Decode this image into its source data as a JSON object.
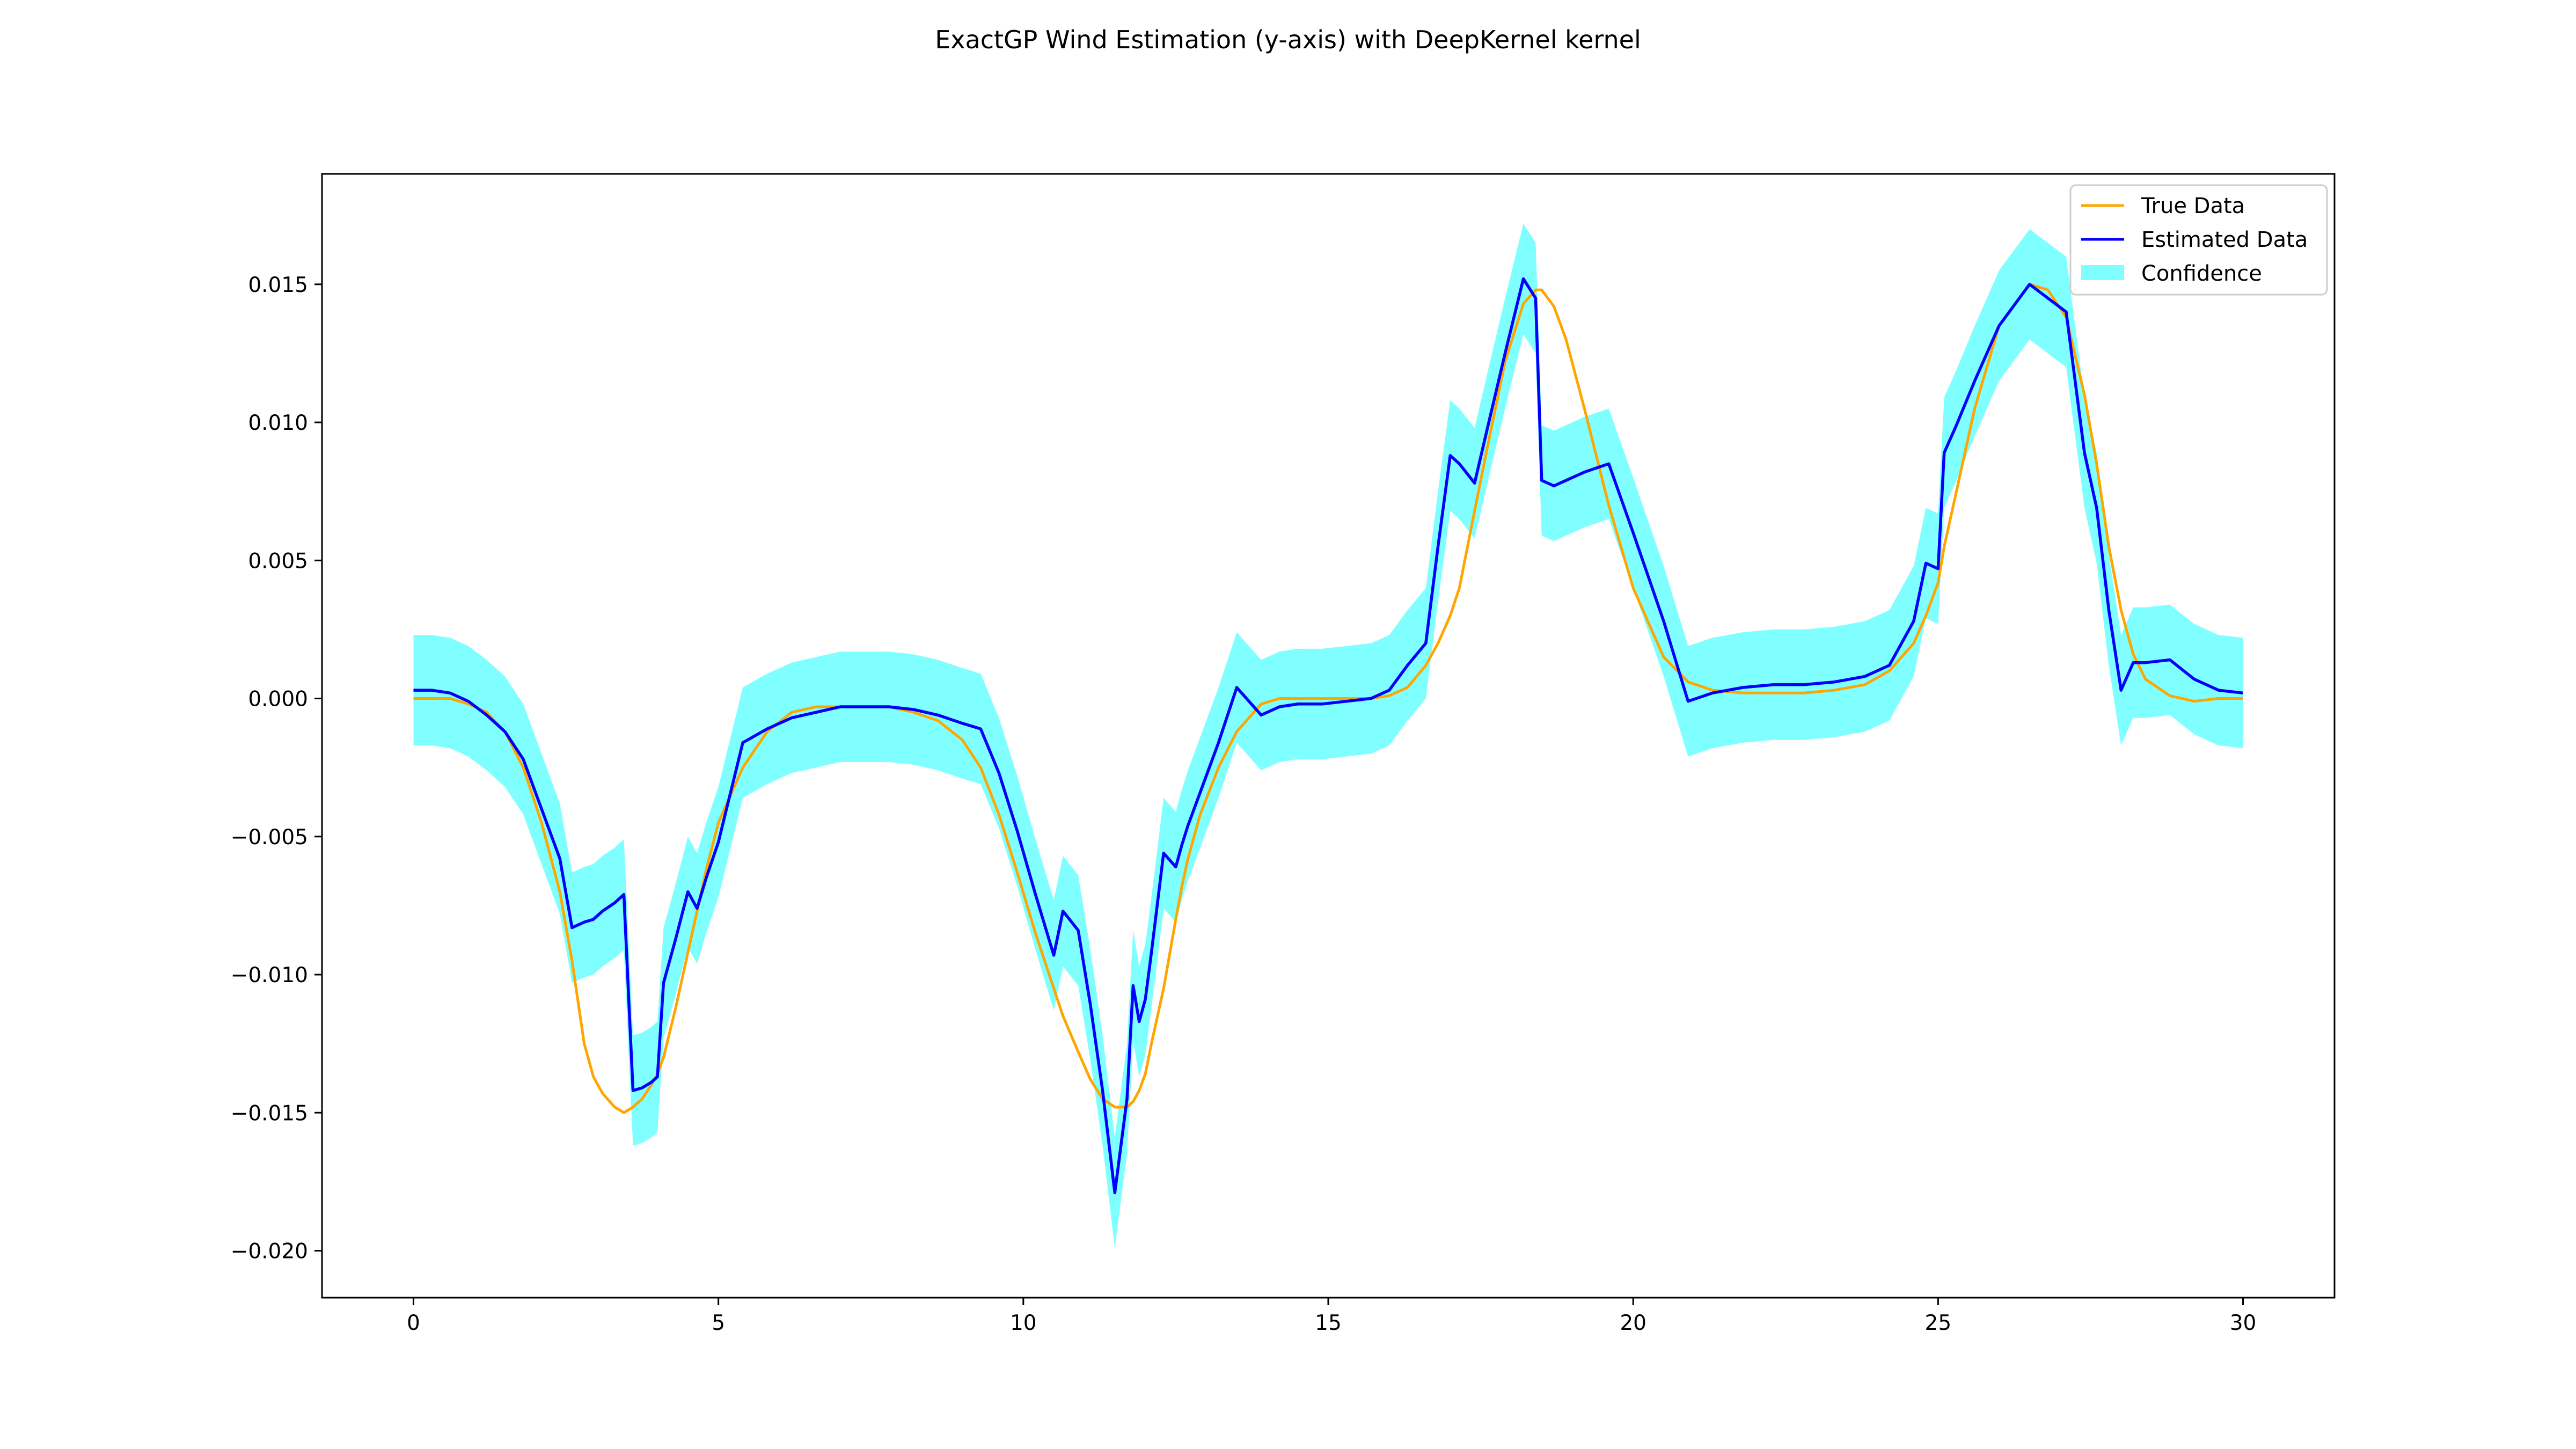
{
  "chart_data": {
    "type": "line",
    "title": "ExactGP Wind Estimation (y-axis) with DeepKernel kernel",
    "xlabel": "",
    "ylabel": "",
    "xlim": [
      -1.5,
      31.5
    ],
    "ylim": [
      -0.0217,
      0.019
    ],
    "xticks": [
      0,
      5,
      10,
      15,
      20,
      25,
      30
    ],
    "xtick_labels": [
      "0",
      "5",
      "10",
      "15",
      "20",
      "25",
      "30"
    ],
    "yticks": [
      0.015,
      0.01,
      0.005,
      0.0,
      -0.005,
      -0.01,
      -0.015,
      -0.02
    ],
    "ytick_labels": [
      "0.015",
      "0.010",
      "0.005",
      "0.000",
      "−0.005",
      "−0.010",
      "−0.015",
      "−0.020"
    ],
    "grid": false,
    "legend_position": "top-right",
    "colors": {
      "true": "#ffa500",
      "estimated": "#0000ff",
      "confidence": "#00ffff",
      "confidence_opacity": 0.5
    },
    "x": [
      0,
      0.3,
      0.6,
      0.9,
      1.2,
      1.5,
      1.8,
      2.1,
      2.4,
      2.6,
      2.8,
      2.95,
      3.1,
      3.3,
      3.45,
      3.6,
      3.75,
      3.9,
      4.0,
      4.1,
      4.3,
      4.5,
      4.65,
      4.8,
      5.0,
      5.4,
      5.8,
      6.2,
      6.6,
      7.0,
      7.4,
      7.8,
      8.2,
      8.6,
      9.0,
      9.3,
      9.6,
      9.9,
      10.2,
      10.5,
      10.65,
      10.9,
      11.1,
      11.3,
      11.5,
      11.7,
      11.8,
      11.9,
      12.0,
      12.1,
      12.3,
      12.5,
      12.6,
      12.7,
      12.9,
      13.2,
      13.5,
      13.9,
      14.2,
      14.5,
      14.9,
      15.3,
      15.7,
      16.0,
      16.3,
      16.6,
      16.8,
      17.0,
      17.15,
      17.4,
      17.6,
      17.9,
      18.2,
      18.4,
      18.5,
      18.7,
      18.9,
      19.2,
      19.6,
      20.0,
      20.5,
      20.9,
      21.3,
      21.8,
      22.3,
      22.8,
      23.3,
      23.8,
      24.2,
      24.6,
      24.8,
      25.0,
      25.1,
      25.3,
      25.6,
      26.0,
      26.5,
      26.8,
      27.1,
      27.4,
      27.6,
      27.8,
      28.0,
      28.2,
      28.4,
      28.8,
      29.2,
      29.6,
      30.0
    ],
    "series": [
      {
        "name": "True Data",
        "values": [
          0.0,
          0.0,
          0.0,
          -0.0002,
          -0.0005,
          -0.0012,
          -0.0025,
          -0.0045,
          -0.007,
          -0.0095,
          -0.0125,
          -0.0137,
          -0.0143,
          -0.0148,
          -0.015,
          -0.0148,
          -0.0145,
          -0.014,
          -0.0136,
          -0.013,
          -0.0112,
          -0.0092,
          -0.0077,
          -0.0062,
          -0.0045,
          -0.0025,
          -0.0012,
          -0.0005,
          -0.0003,
          -0.0003,
          -0.0003,
          -0.0003,
          -0.0005,
          -0.0008,
          -0.0015,
          -0.0025,
          -0.0042,
          -0.0063,
          -0.0085,
          -0.0105,
          -0.0115,
          -0.0128,
          -0.0138,
          -0.0145,
          -0.0148,
          -0.0148,
          -0.0146,
          -0.0142,
          -0.0136,
          -0.0125,
          -0.0105,
          -0.008,
          -0.0068,
          -0.0058,
          -0.0042,
          -0.0025,
          -0.0012,
          -0.0002,
          0.0,
          0.0,
          0.0,
          0.0,
          0.0,
          0.0001,
          0.0004,
          0.0012,
          0.002,
          0.003,
          0.004,
          0.0068,
          0.009,
          0.0122,
          0.0143,
          0.0148,
          0.0148,
          0.0142,
          0.013,
          0.0105,
          0.007,
          0.004,
          0.0015,
          0.0006,
          0.0003,
          0.0002,
          0.0002,
          0.0002,
          0.0003,
          0.0005,
          0.001,
          0.002,
          0.003,
          0.0042,
          0.0055,
          0.0075,
          0.0105,
          0.0135,
          0.015,
          0.0148,
          0.0138,
          0.011,
          0.0085,
          0.0055,
          0.0032,
          0.0016,
          0.0007,
          0.0001,
          -0.0001,
          0.0,
          0.0
        ]
      },
      {
        "name": "Estimated Data",
        "values": [
          0.0003,
          0.0003,
          0.0002,
          -0.0001,
          -0.0006,
          -0.0012,
          -0.0022,
          -0.004,
          -0.0058,
          -0.0083,
          -0.0081,
          -0.008,
          -0.0077,
          -0.0074,
          -0.0071,
          -0.0142,
          -0.0141,
          -0.0139,
          -0.0137,
          -0.0103,
          -0.0087,
          -0.007,
          -0.0076,
          -0.0065,
          -0.0052,
          -0.0016,
          -0.0011,
          -0.0007,
          -0.0005,
          -0.0003,
          -0.0003,
          -0.0003,
          -0.0004,
          -0.0006,
          -0.0009,
          -0.0011,
          -0.0027,
          -0.0048,
          -0.0071,
          -0.0093,
          -0.0077,
          -0.0084,
          -0.0111,
          -0.0142,
          -0.0179,
          -0.0145,
          -0.0104,
          -0.0117,
          -0.0109,
          -0.0092,
          -0.0056,
          -0.0061,
          -0.0053,
          -0.0046,
          -0.0034,
          -0.0016,
          0.0004,
          -0.0006,
          -0.0003,
          -0.0002,
          -0.0002,
          -0.0001,
          0.0,
          0.0003,
          0.0012,
          0.002,
          0.0055,
          0.0088,
          0.0085,
          0.0078,
          0.0097,
          0.0125,
          0.0152,
          0.0145,
          0.0079,
          0.0077,
          0.0079,
          0.0082,
          0.0085,
          0.006,
          0.0028,
          -0.0001,
          0.0002,
          0.0004,
          0.0005,
          0.0005,
          0.0006,
          0.0008,
          0.0012,
          0.0028,
          0.0049,
          0.0047,
          0.0089,
          0.0099,
          0.0115,
          0.0135,
          0.015,
          0.0145,
          0.014,
          0.0089,
          0.0069,
          0.0032,
          0.0003,
          0.0013,
          0.0013,
          0.0014,
          0.0007,
          0.0003,
          0.0002
        ]
      }
    ],
    "confidence": {
      "name": "Confidence",
      "lower": [
        -0.0017,
        -0.0017,
        -0.0018,
        -0.0021,
        -0.0026,
        -0.0032,
        -0.0042,
        -0.006,
        -0.0078,
        -0.0103,
        -0.0101,
        -0.01,
        -0.0097,
        -0.0094,
        -0.0091,
        -0.0162,
        -0.0161,
        -0.0159,
        -0.0157,
        -0.0123,
        -0.0107,
        -0.009,
        -0.0096,
        -0.0085,
        -0.0072,
        -0.0036,
        -0.0031,
        -0.0027,
        -0.0025,
        -0.0023,
        -0.0023,
        -0.0023,
        -0.0024,
        -0.0026,
        -0.0029,
        -0.0031,
        -0.0047,
        -0.0068,
        -0.0091,
        -0.0113,
        -0.0097,
        -0.0104,
        -0.0131,
        -0.0162,
        -0.0199,
        -0.0165,
        -0.0124,
        -0.0137,
        -0.0129,
        -0.0112,
        -0.0076,
        -0.0081,
        -0.0073,
        -0.0066,
        -0.0054,
        -0.0036,
        -0.0016,
        -0.0026,
        -0.0023,
        -0.0022,
        -0.0022,
        -0.0021,
        -0.002,
        -0.0017,
        -0.0008,
        0.0,
        0.0035,
        0.0068,
        0.0065,
        0.0058,
        0.0077,
        0.0105,
        0.0132,
        0.0125,
        0.0059,
        0.0057,
        0.0059,
        0.0062,
        0.0065,
        0.004,
        0.0008,
        -0.0021,
        -0.0018,
        -0.0016,
        -0.0015,
        -0.0015,
        -0.0014,
        -0.0012,
        -0.0008,
        0.0008,
        0.0029,
        0.0027,
        0.0069,
        0.0079,
        0.0095,
        0.0115,
        0.013,
        0.0125,
        0.012,
        0.0069,
        0.0049,
        0.0012,
        -0.0017,
        -0.0007,
        -0.0007,
        -0.0006,
        -0.0013,
        -0.0017,
        -0.0018
      ],
      "upper": [
        0.0023,
        0.0023,
        0.0022,
        0.0019,
        0.0014,
        0.0008,
        -0.0002,
        -0.002,
        -0.0038,
        -0.0063,
        -0.0061,
        -0.006,
        -0.0057,
        -0.0054,
        -0.0051,
        -0.0122,
        -0.0121,
        -0.0119,
        -0.0117,
        -0.0083,
        -0.0067,
        -0.005,
        -0.0056,
        -0.0045,
        -0.0032,
        0.0004,
        0.0009,
        0.0013,
        0.0015,
        0.0017,
        0.0017,
        0.0017,
        0.0016,
        0.0014,
        0.0011,
        0.0009,
        -0.0007,
        -0.0028,
        -0.0051,
        -0.0073,
        -0.0057,
        -0.0064,
        -0.0091,
        -0.0122,
        -0.0159,
        -0.0125,
        -0.0084,
        -0.0097,
        -0.0089,
        -0.0072,
        -0.0036,
        -0.0041,
        -0.0033,
        -0.0026,
        -0.0014,
        0.0004,
        0.0024,
        0.0014,
        0.0017,
        0.0018,
        0.0018,
        0.0019,
        0.002,
        0.0023,
        0.0032,
        0.004,
        0.0075,
        0.0108,
        0.0105,
        0.0098,
        0.0117,
        0.0145,
        0.0172,
        0.0165,
        0.0099,
        0.0097,
        0.0099,
        0.0102,
        0.0105,
        0.008,
        0.0048,
        0.0019,
        0.0022,
        0.0024,
        0.0025,
        0.0025,
        0.0026,
        0.0028,
        0.0032,
        0.0048,
        0.0069,
        0.0067,
        0.0109,
        0.0119,
        0.0135,
        0.0155,
        0.017,
        0.0165,
        0.016,
        0.0109,
        0.0089,
        0.0052,
        0.0023,
        0.0033,
        0.0033,
        0.0034,
        0.0027,
        0.0023,
        0.0022
      ]
    }
  }
}
